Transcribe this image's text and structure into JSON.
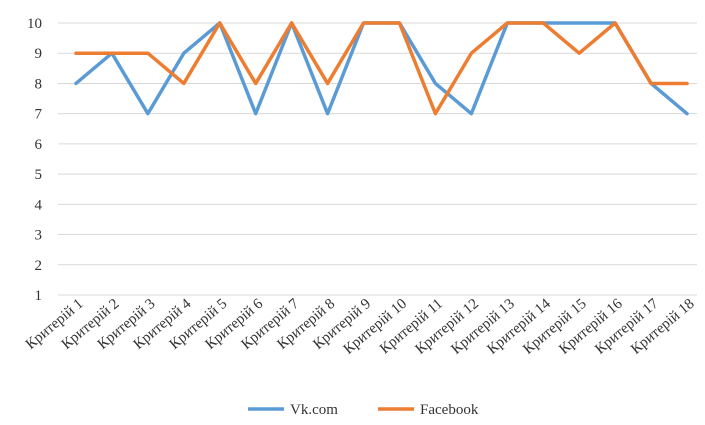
{
  "chart_data": {
    "type": "line",
    "categories": [
      "Критерій 1",
      "Критерій 2",
      "Критерій 3",
      "Критерій 4",
      "Критерій 5",
      "Критерій 6",
      "Критерій 7",
      "Критерій 8",
      "Критерій 9",
      "Критерій 10",
      "Критерій 11",
      "Критерій 12",
      "Критерій 13",
      "Критерій 14",
      "Критерій 15",
      "Критерій 16",
      "Критерій 17",
      "Критерій 18"
    ],
    "series": [
      {
        "name": "Vk.com",
        "color": "#5B9BD5",
        "values": [
          8,
          9,
          7,
          9,
          10,
          7,
          10,
          7,
          10,
          10,
          8,
          7,
          10,
          10,
          10,
          10,
          8,
          7
        ]
      },
      {
        "name": "Facebook",
        "color": "#ED7D31",
        "values": [
          9,
          9,
          9,
          8,
          10,
          8,
          10,
          8,
          10,
          10,
          7,
          9,
          10,
          10,
          9,
          10,
          8,
          8
        ]
      }
    ],
    "ylim": [
      1,
      10
    ],
    "yticks": [
      "1",
      "2",
      "3",
      "4",
      "5",
      "6",
      "7",
      "8",
      "9",
      "10"
    ],
    "grid": true,
    "legend": "bottom",
    "title": "",
    "xlabel": "",
    "ylabel": ""
  }
}
